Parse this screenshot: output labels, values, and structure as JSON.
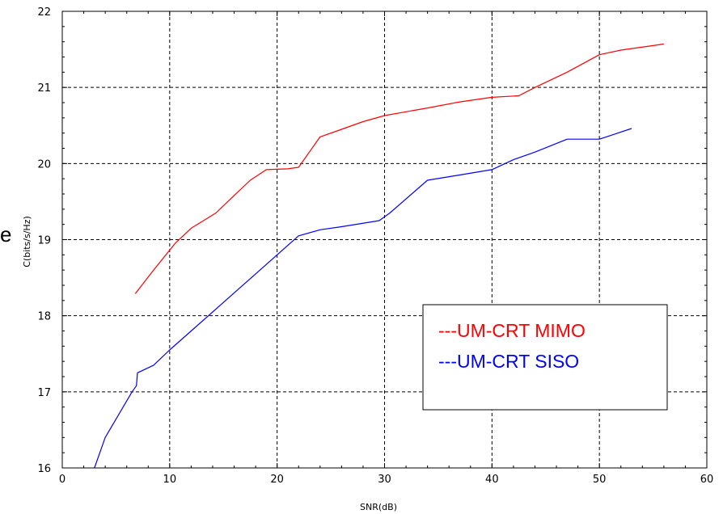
{
  "stray_glyph": "e",
  "chart_data": {
    "type": "line",
    "title": "",
    "xlabel": "SNR(dB)",
    "ylabel": "C(bits/s/Hz)",
    "xlim": [
      0,
      60
    ],
    "ylim": [
      16,
      22
    ],
    "xticks": [
      "0",
      "10",
      "20",
      "30",
      "40",
      "50",
      "60"
    ],
    "yticks": [
      "16",
      "17",
      "18",
      "19",
      "20",
      "21",
      "22"
    ],
    "grid": true,
    "grid_style": "dashed",
    "legend_position": "bottom-right",
    "series": [
      {
        "name": "---UM-CRT MIMO",
        "color": "#ff0000",
        "x": [
          6.8,
          8.5,
          10.5,
          12,
          14.3,
          16,
          17.5,
          19,
          21,
          22,
          23,
          24,
          26,
          28,
          30,
          34,
          37,
          40,
          42.5,
          44,
          47,
          50,
          52,
          56
        ],
        "y": [
          18.29,
          18.6,
          18.95,
          19.15,
          19.35,
          19.58,
          19.78,
          19.92,
          19.93,
          19.95,
          20.15,
          20.35,
          20.45,
          20.55,
          20.63,
          20.73,
          20.81,
          20.87,
          20.89,
          21.0,
          21.2,
          21.43,
          21.49,
          21.57
        ]
      },
      {
        "name": "---UM-CRT SISO",
        "color": "#0000ff",
        "x": [
          3,
          4,
          6.5,
          6.9,
          7.0,
          8.5,
          10,
          12,
          14,
          16,
          18,
          20,
          22,
          24,
          26,
          29.5,
          30.5,
          34,
          37,
          40,
          42,
          44,
          47,
          50,
          53
        ],
        "y": [
          16.0,
          16.4,
          17.0,
          17.08,
          17.25,
          17.35,
          17.55,
          17.8,
          18.05,
          18.3,
          18.55,
          18.8,
          19.05,
          19.13,
          19.17,
          19.25,
          19.35,
          19.78,
          19.85,
          19.92,
          20.05,
          20.15,
          20.32,
          20.32,
          20.46
        ]
      }
    ]
  }
}
